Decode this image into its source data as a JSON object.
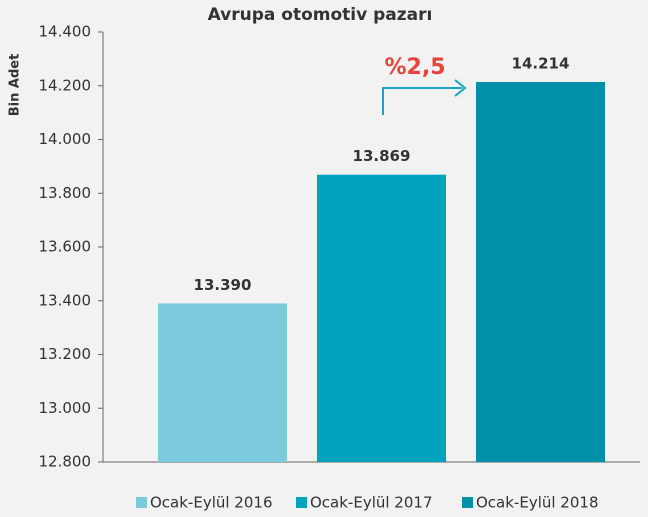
{
  "chart_data": {
    "type": "bar",
    "title": "Avrupa otomotiv pazarı",
    "y_label": "Bin Adet",
    "categories": [
      null
    ],
    "series": [
      {
        "name": "Ocak-Eylül 2016",
        "color": "#7ccbdc",
        "values": [
          13390
        ],
        "value_labels": [
          "13.390"
        ]
      },
      {
        "name": "Ocak-Eylül 2017",
        "color": "#00a3bb",
        "values": [
          13869
        ],
        "value_labels": [
          "13.869"
        ]
      },
      {
        "name": "Ocak-Eylül 2018",
        "color": "#0090a8",
        "values": [
          14214
        ],
        "value_labels": [
          "14.214"
        ]
      }
    ],
    "ylim": [
      12800,
      14400
    ],
    "yticks": [
      {
        "value": 12800,
        "label": "12.800"
      },
      {
        "value": 13000,
        "label": "13.000"
      },
      {
        "value": 13200,
        "label": "13.200"
      },
      {
        "value": 13400,
        "label": "13.400"
      },
      {
        "value": 13600,
        "label": "13.600"
      },
      {
        "value": 13800,
        "label": "13.800"
      },
      {
        "value": 14000,
        "label": "14.000"
      },
      {
        "value": 14200,
        "label": "14.200"
      },
      {
        "value": 14400,
        "label": "14.400"
      }
    ],
    "annotation": "%2,5",
    "annotation_color": "#e8423b",
    "legend": "bottom"
  }
}
